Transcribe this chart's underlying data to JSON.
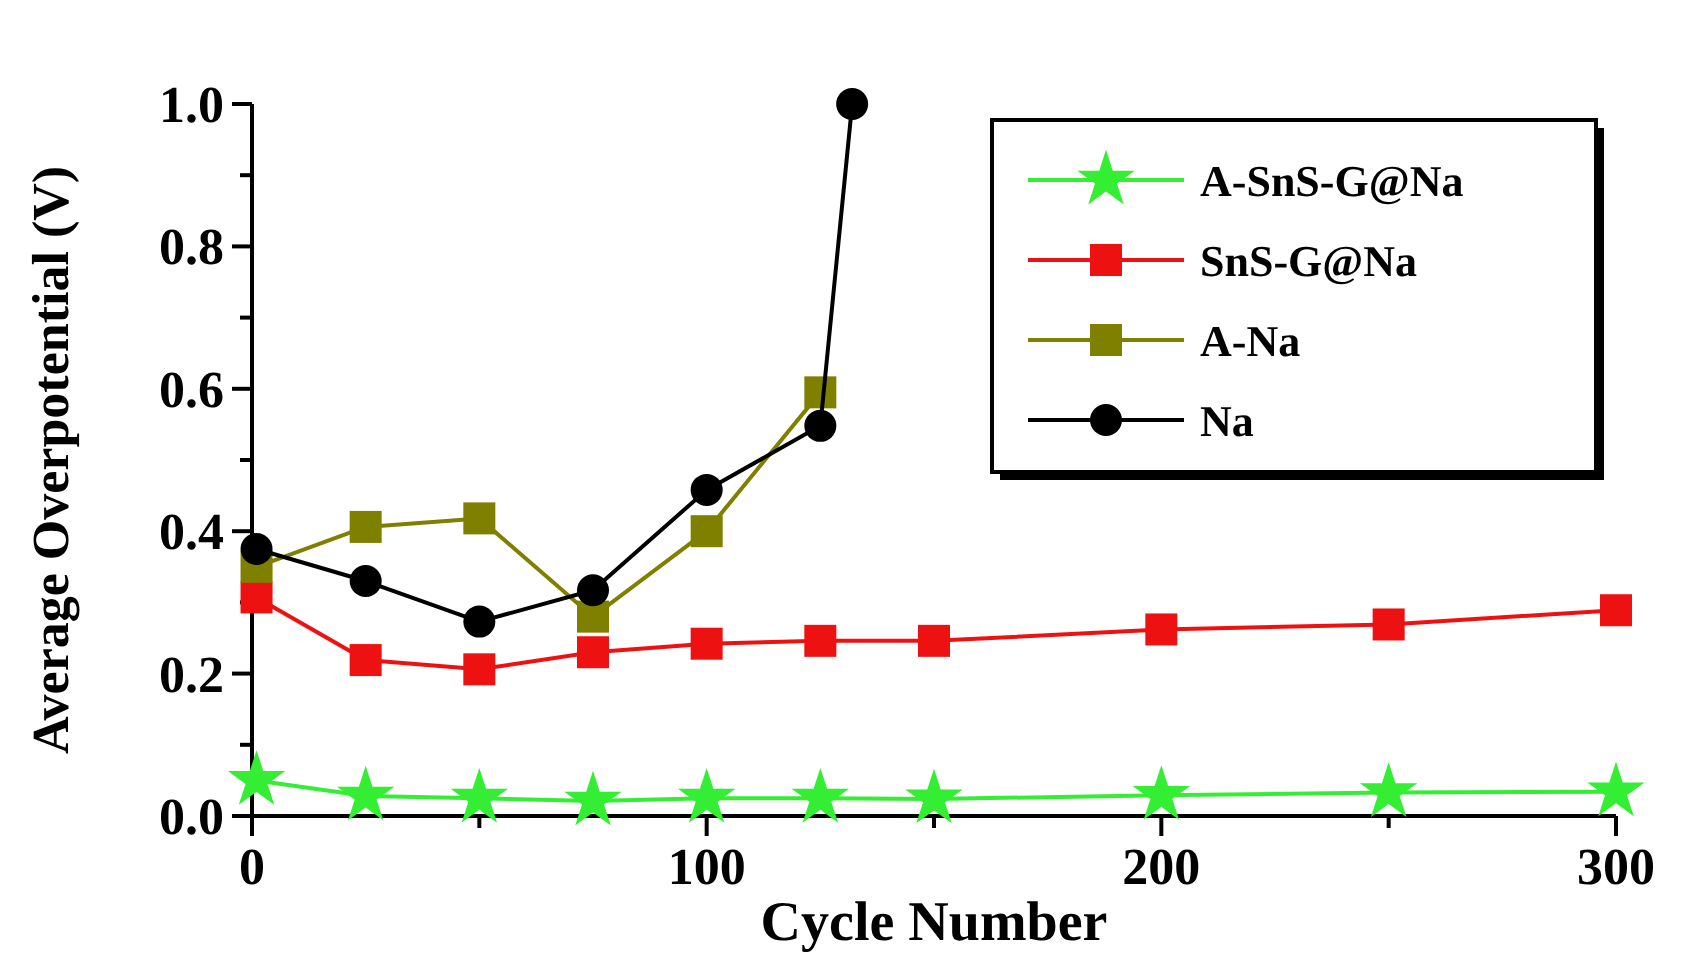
{
  "chart_data": {
    "type": "line",
    "xlabel": "Cycle Number",
    "ylabel": "Average Overpotential (V)",
    "xlim": [
      0,
      300
    ],
    "ylim": [
      0,
      1
    ],
    "xticks": [
      0,
      {
        "value": 50,
        "label": null
      },
      100,
      {
        "value": 150,
        "label": null
      },
      200,
      {
        "value": 250,
        "label": null
      },
      300
    ],
    "yticks": [
      "0.0",
      {
        "value": 0.1,
        "label": null
      },
      {
        "value": 0.2,
        "label": "0.2"
      },
      {
        "value": 0.3,
        "label": null
      },
      {
        "value": 0.4,
        "label": "0.4"
      },
      {
        "value": 0.5,
        "label": null
      },
      {
        "value": 0.6,
        "label": "0.6"
      },
      {
        "value": 0.7,
        "label": null
      },
      {
        "value": 0.8,
        "label": "0.8"
      },
      {
        "value": 0.9,
        "label": null
      },
      {
        "value": 1,
        "label": "1.0"
      }
    ],
    "legend": "top right",
    "grid": false,
    "line_style": "solid",
    "series": [
      {
        "name": "A-SnS-G@Na",
        "color": "#33ee33",
        "marker": "star",
        "x": [
          1,
          25,
          50,
          75,
          100,
          125,
          150,
          200,
          250,
          300
        ],
        "values": [
          0.05,
          0.028,
          0.025,
          0.021,
          0.025,
          0.025,
          0.024,
          0.029,
          0.033,
          0.034
        ]
      },
      {
        "name": "SnS-G@Na",
        "color": "#ee1111",
        "marker": "square",
        "x": [
          1,
          25,
          50,
          75,
          100,
          125,
          150,
          200,
          250,
          300
        ],
        "values": [
          0.307,
          0.219,
          0.206,
          0.23,
          0.242,
          0.246,
          0.246,
          0.262,
          0.269,
          0.289
        ]
      },
      {
        "name": "A-Na",
        "color": "#808000",
        "marker": "square",
        "x": [
          1,
          25,
          50,
          75,
          100,
          125
        ],
        "values": [
          0.35,
          0.406,
          0.418,
          0.28,
          0.4,
          0.595
        ]
      },
      {
        "name": "Na",
        "color": "#000000",
        "marker": "circle",
        "x": [
          1,
          25,
          50,
          75,
          100,
          125,
          132
        ],
        "values": [
          0.375,
          0.33,
          0.273,
          0.317,
          0.458,
          0.548,
          1.0
        ]
      }
    ]
  }
}
